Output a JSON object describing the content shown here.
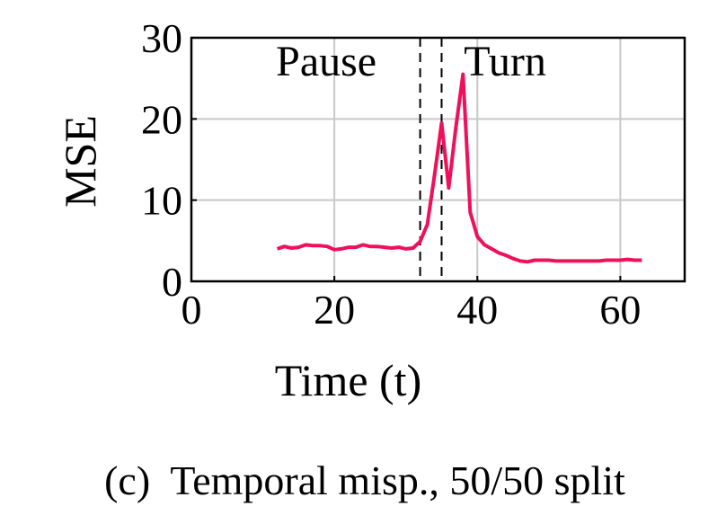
{
  "chart_data": {
    "type": "line",
    "xlabel": "Time (t)",
    "ylabel": "MSE",
    "xlim": [
      0,
      69
    ],
    "ylim": [
      0,
      30
    ],
    "xticks": [
      "0",
      "20",
      "40",
      "60"
    ],
    "yticks": [
      "0",
      "10",
      "20",
      "30"
    ],
    "grid": true,
    "line_color": "#f0105a",
    "vlines": [
      32,
      35
    ],
    "annotations": [
      {
        "text": "Pause",
        "x": 20
      },
      {
        "text": "Turn",
        "x": 44
      }
    ],
    "series": [
      {
        "x": [
          12,
          13,
          14,
          15,
          16,
          17,
          18,
          19,
          20,
          21,
          22,
          23,
          24,
          25,
          26,
          27,
          28,
          29,
          30,
          31,
          32,
          33,
          34,
          35,
          36,
          37,
          38,
          39,
          40,
          41,
          42,
          43,
          44,
          45,
          46,
          47,
          48,
          49,
          50,
          51,
          52,
          53,
          54,
          55,
          56,
          57,
          58,
          59,
          60,
          61,
          62,
          63
        ],
        "y": [
          4.0,
          4.3,
          4.1,
          4.2,
          4.5,
          4.4,
          4.4,
          4.3,
          3.9,
          4.0,
          4.2,
          4.2,
          4.5,
          4.3,
          4.3,
          4.2,
          4.1,
          4.2,
          4.0,
          4.1,
          4.9,
          7.0,
          13.0,
          19.5,
          11.5,
          19.0,
          25.5,
          8.5,
          5.5,
          4.5,
          4.0,
          3.5,
          3.2,
          2.8,
          2.5,
          2.4,
          2.6,
          2.6,
          2.6,
          2.5,
          2.5,
          2.5,
          2.5,
          2.5,
          2.5,
          2.5,
          2.6,
          2.6,
          2.6,
          2.7,
          2.6,
          2.6
        ]
      }
    ]
  },
  "caption": "(c)  Temporal misp., 50/50 split"
}
